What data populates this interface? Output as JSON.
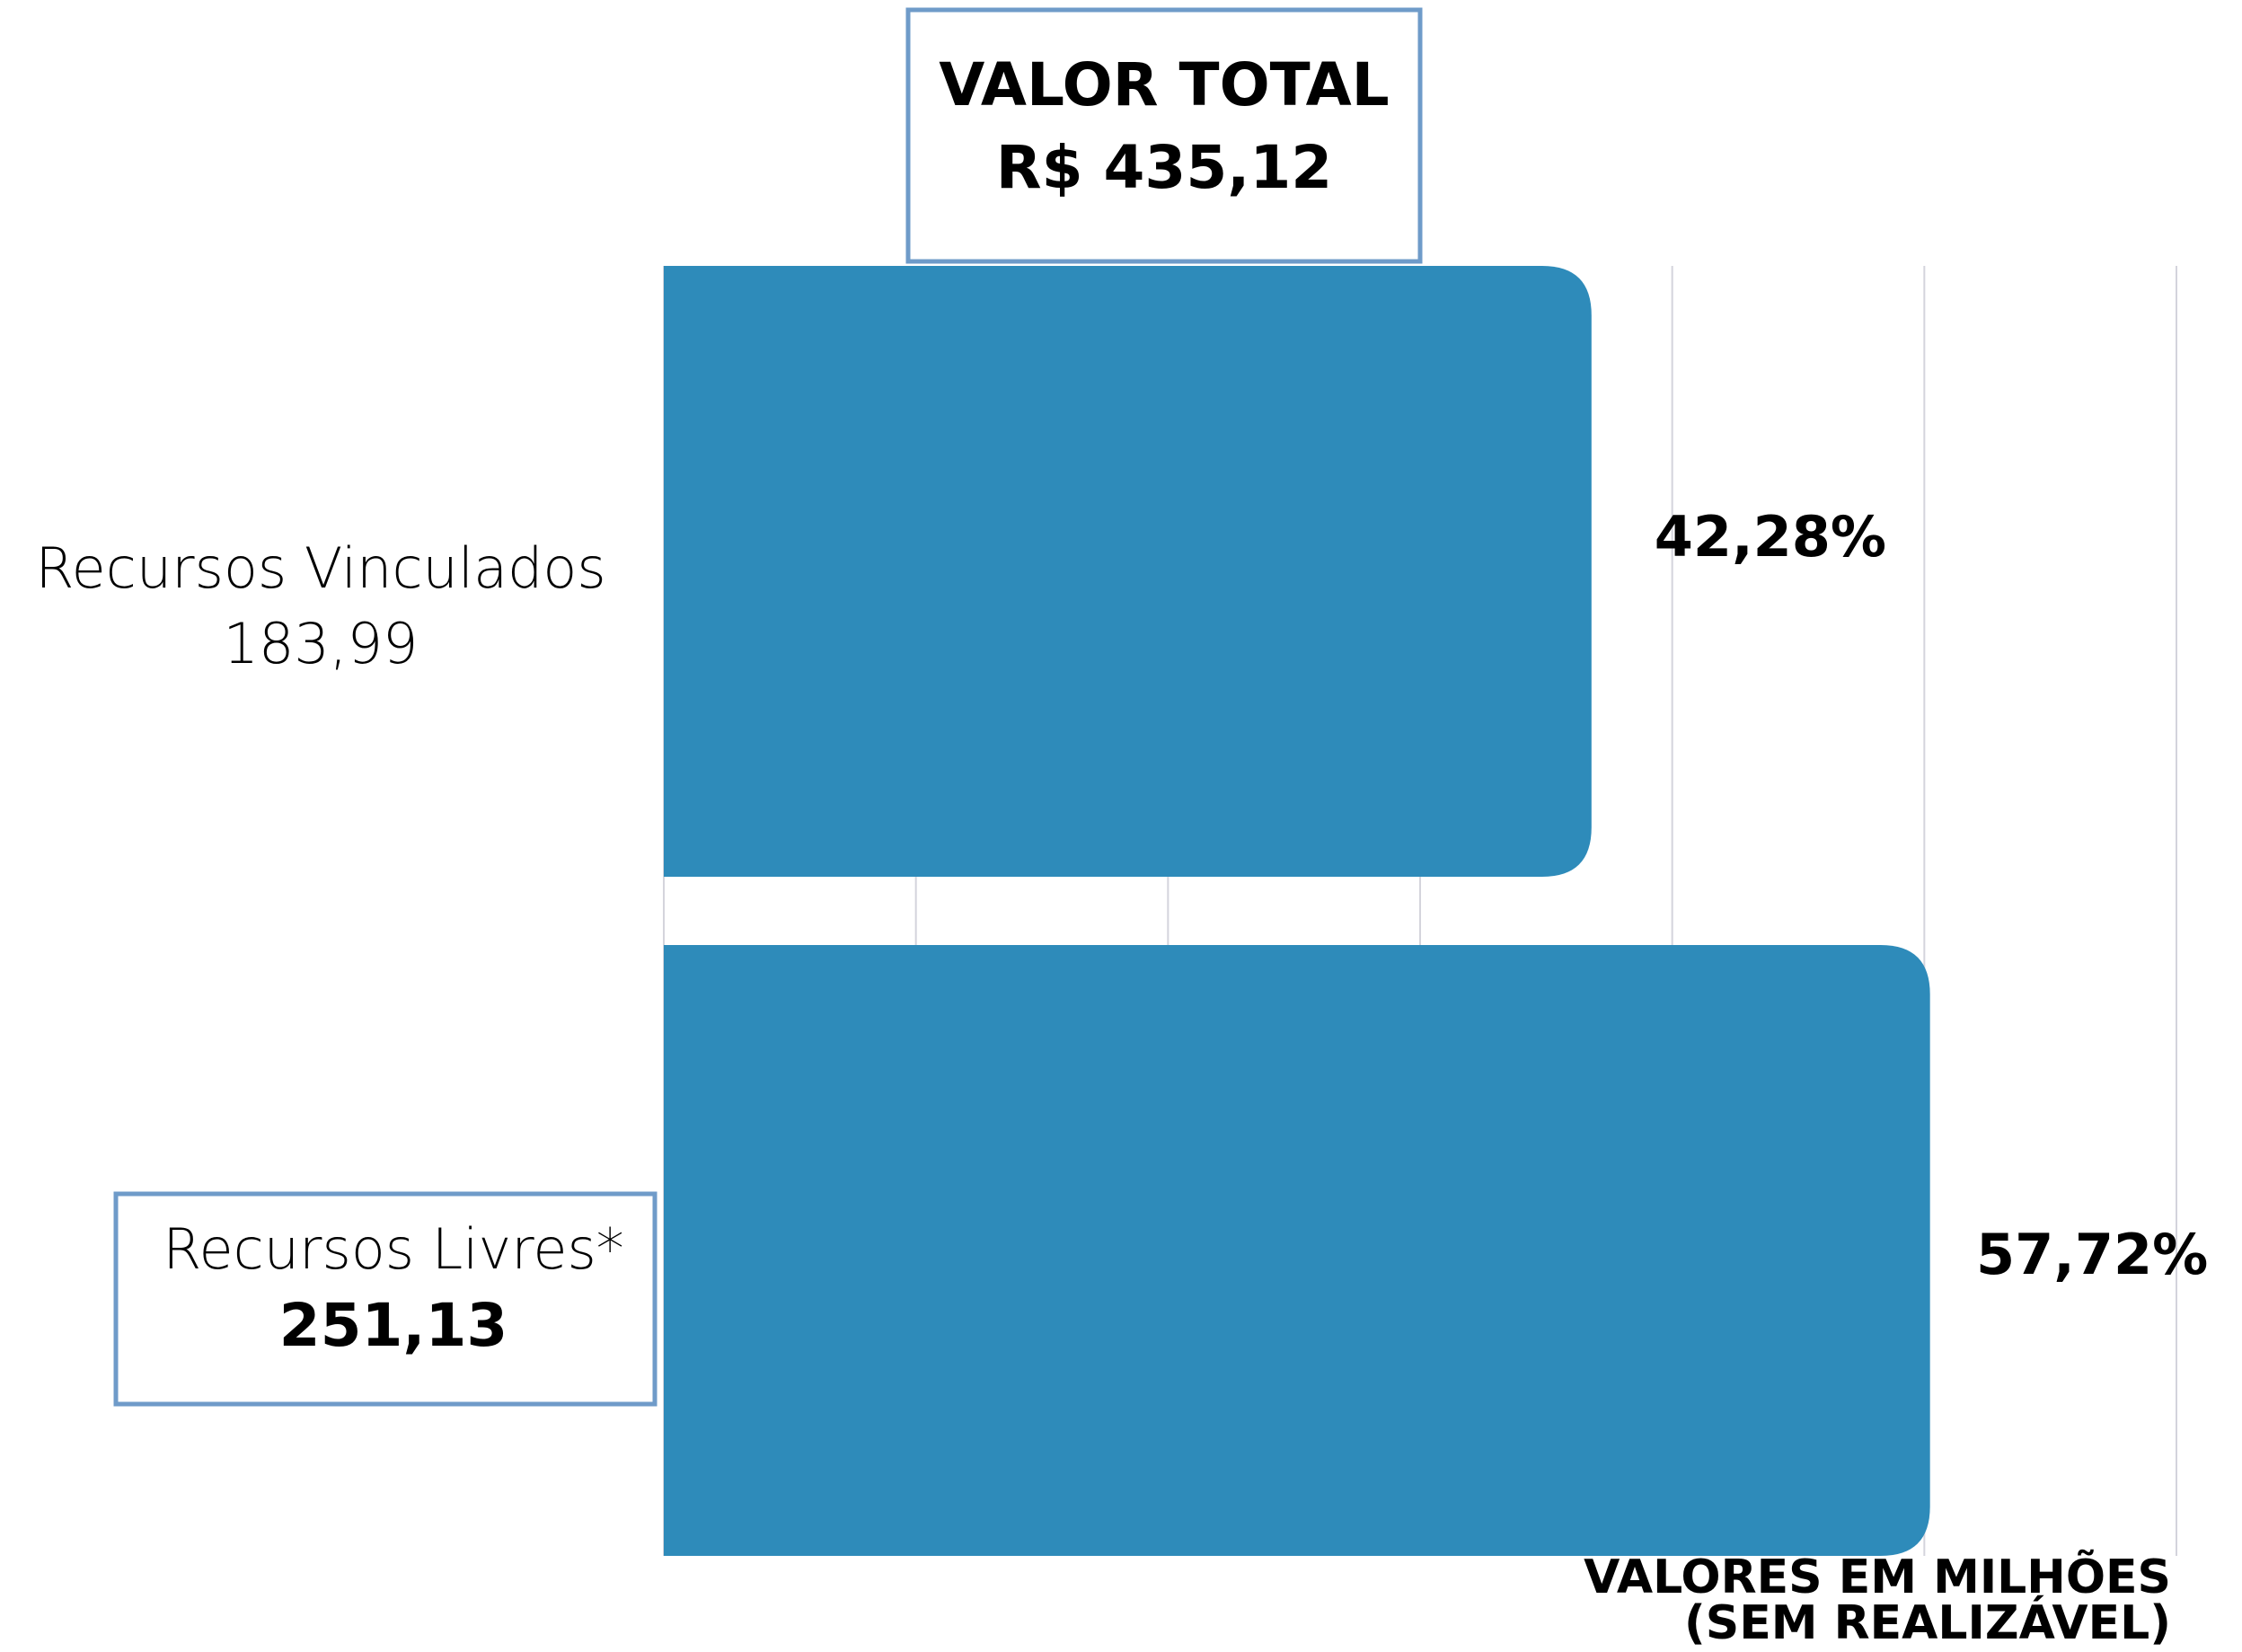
{
  "chart_data": {
    "type": "barh",
    "title": "VALOR TOTAL",
    "subtitle": "R$ 435,12",
    "categories": [
      "Recursos Vinculados",
      "Recursos Livres*"
    ],
    "values": [
      183.99,
      251.13
    ],
    "value_labels": [
      "183,99",
      "251,13"
    ],
    "percentages": [
      42.28,
      57.72
    ],
    "percentage_labels": [
      "42,28%",
      "57,72%"
    ],
    "color": "#2e8bba",
    "xlim": [
      0,
      300
    ],
    "xticks": [
      0,
      50,
      100,
      150,
      200,
      250,
      300
    ],
    "grid": true,
    "annotations": [
      "VALORES EM MILHÕES",
      "(SEM REALIZÁVEL)"
    ]
  }
}
